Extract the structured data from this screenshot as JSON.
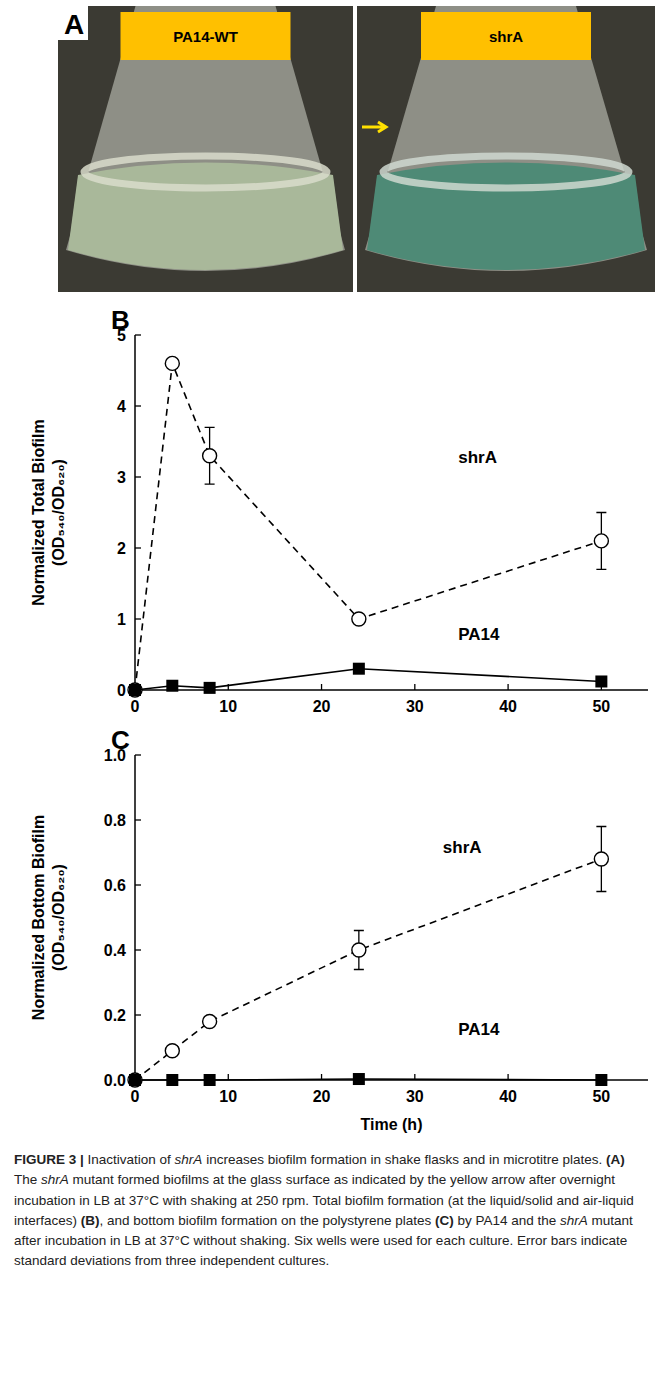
{
  "photo_panel": {
    "letter": "A",
    "labels": [
      "PA14-WT",
      "shrA"
    ]
  },
  "chart_data": [
    {
      "type": "line",
      "letter": "B",
      "ylabel": "Normalized Total Biofilm (OD₅₄₀/OD₆₂₀)",
      "x": [
        0,
        4,
        8,
        24,
        50
      ],
      "xlim": [
        0,
        55
      ],
      "xticks": [
        0,
        10,
        20,
        30,
        40,
        50
      ],
      "ylim": [
        0,
        5
      ],
      "yticks": [
        0,
        1,
        2,
        3,
        4,
        5
      ],
      "series": [
        {
          "name": "shrA",
          "color": "#000000",
          "marker": "circle-open",
          "line_style": "dashed",
          "values": [
            0,
            4.6,
            3.3,
            1.0,
            2.1
          ],
          "errors": [
            null,
            null,
            0.4,
            null,
            0.4
          ]
        },
        {
          "name": "PA14",
          "color": "#000000",
          "marker": "square",
          "line_style": "solid",
          "values": [
            0,
            0.06,
            0.03,
            0.3,
            0.12
          ],
          "errors": [
            null,
            null,
            null,
            null,
            null
          ]
        }
      ]
    },
    {
      "type": "line",
      "letter": "C",
      "ylabel": "Normalized Bottom Biofilm (OD₅₄₀/OD₆₂₀)",
      "xlabel": "Time (h)",
      "x": [
        0,
        4,
        8,
        24,
        50
      ],
      "xlim": [
        0,
        55
      ],
      "xticks": [
        0,
        10,
        20,
        30,
        40,
        50
      ],
      "ylim": [
        0,
        1
      ],
      "yticks": [
        {
          "value": 0,
          "label": "0.0"
        },
        0.2,
        0.4,
        0.6,
        0.8,
        {
          "value": 1,
          "label": "1.0"
        }
      ],
      "series": [
        {
          "name": "shrA",
          "color": "#000000",
          "marker": "circle-open",
          "line_style": "dashed",
          "values": [
            0,
            0.09,
            0.18,
            0.4,
            0.68
          ],
          "errors": [
            null,
            null,
            null,
            0.06,
            0.1
          ]
        },
        {
          "name": "PA14",
          "color": "#000000",
          "marker": "square",
          "line_style": "solid",
          "values": [
            0,
            0,
            0,
            0.003,
            0
          ],
          "errors": [
            null,
            null,
            null,
            null,
            null
          ]
        }
      ]
    }
  ],
  "caption": {
    "runs": [
      {
        "text": "FIGURE 3 | ",
        "bold": true
      },
      {
        "text": "Inactivation of "
      },
      {
        "text": "shrA",
        "italic": true
      },
      {
        "text": " increases biofilm formation in shake flasks and in microtitre plates. "
      },
      {
        "text": "(A)",
        "bold": true
      },
      {
        "text": " The "
      },
      {
        "text": "shrA",
        "italic": true
      },
      {
        "text": " mutant formed biofilms at the glass surface as indicated by the yellow arrow after overnight incubation in LB at 37°C with shaking at 250 rpm. Total biofilm formation (at the liquid/solid and air-liquid interfaces) "
      },
      {
        "text": "(B)",
        "bold": true
      },
      {
        "text": ", and bottom biofilm formation on the polystyrene plates "
      },
      {
        "text": "(C)",
        "bold": true
      },
      {
        "text": " by PA14 and the "
      },
      {
        "text": "shrA",
        "italic": true
      },
      {
        "text": " mutant after incubation in LB at 37°C without shaking. Six wells were used for each culture. Error bars indicate standard deviations from three independent cultures."
      }
    ]
  }
}
